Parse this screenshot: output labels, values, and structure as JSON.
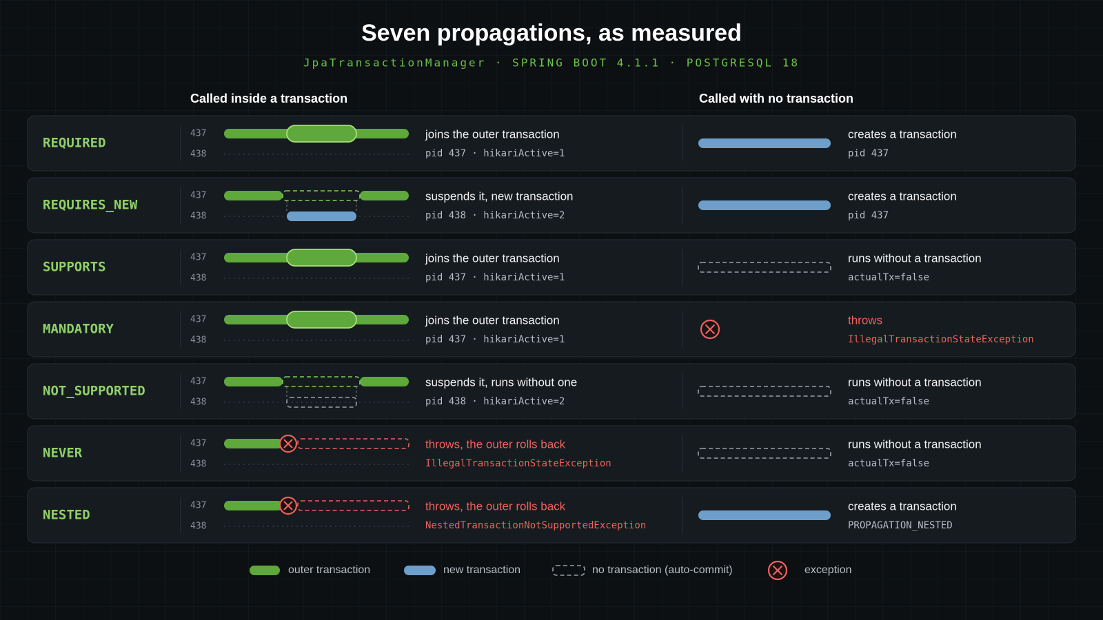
{
  "header": {
    "title": "Seven propagations, as measured",
    "subtitle": "JpaTransactionManager · SPRING BOOT 4.1.1 · POSTGRESQL 18"
  },
  "columns": [
    "Called inside a transaction",
    "Called with no transaction"
  ],
  "rows": [
    {
      "name": "REQUIRED",
      "lanes": [
        "437",
        "438"
      ],
      "inside": {
        "text": "joins the outer transaction",
        "detail": "pid 437 · hikariActive=1"
      },
      "outside": {
        "text": "creates a transaction",
        "detail": "pid 437"
      }
    },
    {
      "name": "REQUIRES_NEW",
      "lanes": [
        "437",
        "438"
      ],
      "inside": {
        "text": "suspends it, new transaction",
        "detail": "pid 438 · hikariActive=2"
      },
      "outside": {
        "text": "creates a transaction",
        "detail": "pid 437"
      }
    },
    {
      "name": "SUPPORTS",
      "lanes": [
        "437",
        "438"
      ],
      "inside": {
        "text": "joins the outer transaction",
        "detail": "pid 437 · hikariActive=1"
      },
      "outside": {
        "text": "runs without a transaction",
        "detail": "actualTx=false"
      }
    },
    {
      "name": "MANDATORY",
      "lanes": [
        "437",
        "438"
      ],
      "inside": {
        "text": "joins the outer transaction",
        "detail": "pid 437 · hikariActive=1"
      },
      "outside": {
        "text": "throws",
        "detail": "IllegalTransactionStateException"
      }
    },
    {
      "name": "NOT_SUPPORTED",
      "lanes": [
        "437",
        "438"
      ],
      "inside": {
        "text": "suspends it, runs without one",
        "detail": "pid 438 · hikariActive=2"
      },
      "outside": {
        "text": "runs without a transaction",
        "detail": "actualTx=false"
      }
    },
    {
      "name": "NEVER",
      "lanes": [
        "437",
        "438"
      ],
      "inside": {
        "text": "throws, the outer rolls back",
        "detail": "IllegalTransactionStateException"
      },
      "outside": {
        "text": "runs without a transaction",
        "detail": "actualTx=false"
      }
    },
    {
      "name": "NESTED",
      "lanes": [
        "437",
        "438"
      ],
      "inside": {
        "text": "throws, the outer rolls back",
        "detail": "NestedTransactionNotSupportedException"
      },
      "outside": {
        "text": "creates a transaction",
        "detail": "PROPAGATION_NESTED"
      }
    }
  ],
  "legend": [
    "outer transaction",
    "new transaction",
    "no transaction (auto-commit)",
    "exception"
  ]
}
